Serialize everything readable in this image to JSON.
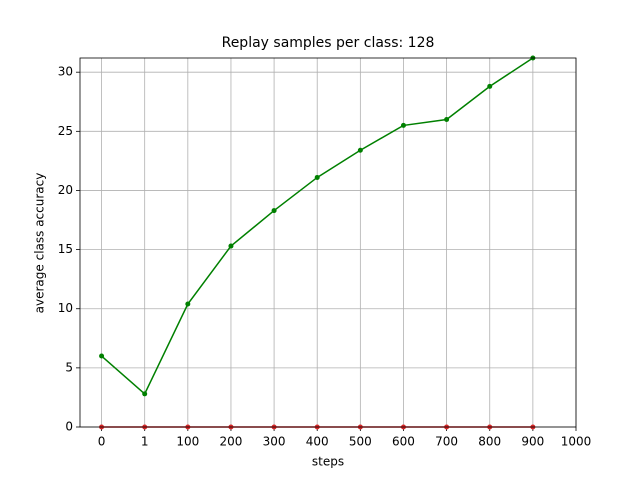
{
  "chart_data": {
    "type": "line",
    "title": "Replay samples per class: 128",
    "x_label": "steps",
    "y_label": "average class accuracy",
    "categories": [
      "0",
      "1",
      "100",
      "200",
      "300",
      "400",
      "500",
      "600",
      "700",
      "800",
      "900",
      "1000"
    ],
    "series": [
      {
        "color": "#008000",
        "values": [
          6.0,
          2.8,
          10.4,
          15.3,
          18.3,
          21.1,
          23.4,
          25.5,
          26.0,
          28.8,
          31.2,
          null
        ]
      },
      {
        "color": "#d62728",
        "values": [
          0,
          0,
          0,
          0,
          0,
          0,
          0,
          0,
          0,
          0,
          0,
          null
        ]
      }
    ],
    "ylim": [
      0,
      31.2
    ],
    "yticks": [
      0,
      5,
      10,
      15,
      20,
      25,
      30
    ],
    "grid": true
  }
}
